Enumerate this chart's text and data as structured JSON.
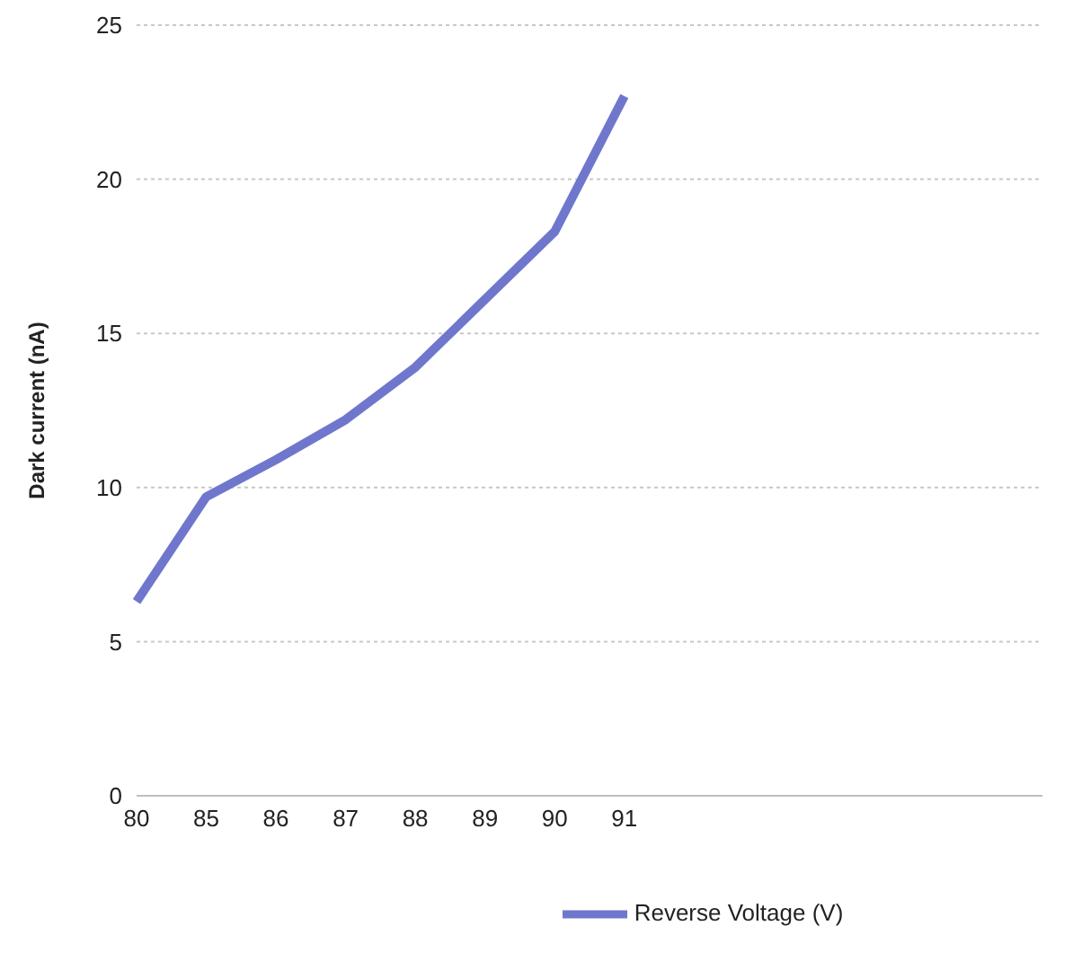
{
  "chart_data": {
    "type": "line",
    "ylabel": "Dark current (nA)",
    "categories": [
      "80",
      "85",
      "86",
      "87",
      "88",
      "89",
      "90",
      "91",
      null,
      null,
      null,
      null,
      null,
      null
    ],
    "series": [
      {
        "name": "Reverse Voltage (V)",
        "color": "#6f77cd",
        "values": [
          6.3,
          9.7,
          10.9,
          12.2,
          13.9,
          16.1,
          18.3,
          22.7,
          null,
          null,
          null,
          null,
          null,
          null
        ]
      }
    ],
    "ylim": [
      0,
      25
    ],
    "yticks": [
      0,
      5,
      10,
      15,
      20,
      25
    ],
    "grid": "y",
    "legend": "bottom",
    "marker": "none",
    "line_style": "solid"
  }
}
